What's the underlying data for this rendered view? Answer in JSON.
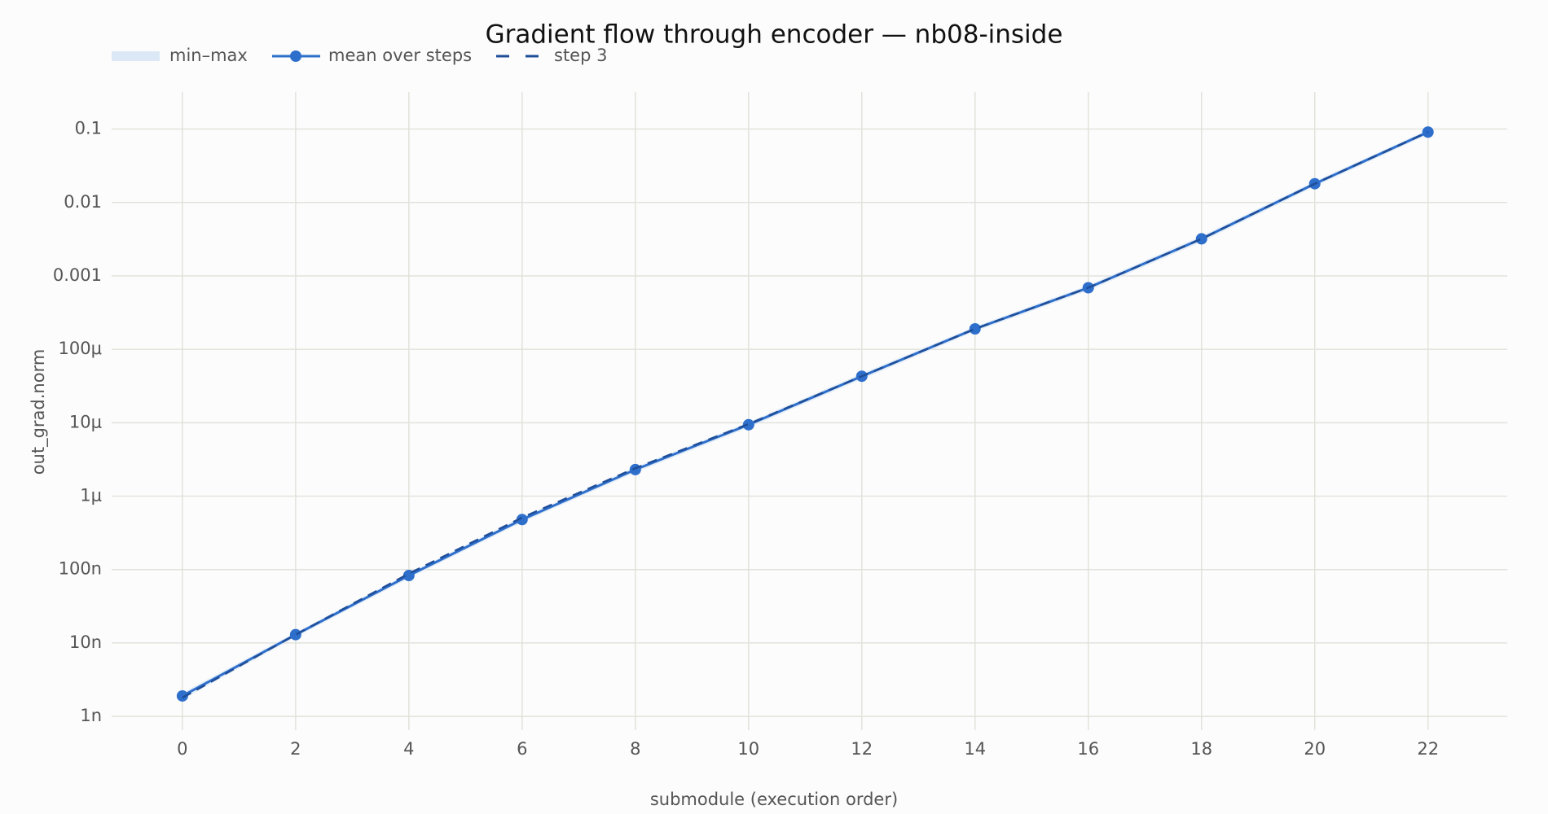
{
  "chart_data": {
    "type": "line",
    "title": "Gradient flow through encoder — nb08-inside",
    "x_label": "submodule (execution order)",
    "y_label": "out_grad.norm",
    "x": [
      0,
      2,
      4,
      6,
      8,
      10,
      12,
      14,
      16,
      18,
      20,
      22
    ],
    "series": [
      {
        "name": "min–max",
        "color": "#dce8f5",
        "style": "band",
        "low": [
          1.7e-09,
          1.2e-08,
          7.6e-08,
          4.4e-07,
          2.1e-06,
          8.6e-06,
          3.9e-05,
          0.000175,
          0.00063,
          0.0029,
          0.0165,
          0.084
        ],
        "high": [
          2.1e-09,
          1.4e-08,
          9e-08,
          5.2e-07,
          2.5e-06,
          1.02e-05,
          4.7e-05,
          0.000205,
          0.00075,
          0.0035,
          0.0195,
          0.098
        ]
      },
      {
        "name": "mean over steps",
        "color": "#2e6fcc",
        "style": "line-markers",
        "values": [
          1.9e-09,
          1.3e-08,
          8.3e-08,
          4.8e-07,
          2.3e-06,
          9.4e-06,
          4.3e-05,
          0.00019,
          0.00069,
          0.0032,
          0.018,
          0.091
        ]
      },
      {
        "name": "step 3",
        "color": "#1f4e99",
        "style": "dash",
        "values": [
          1.8e-09,
          1.3e-08,
          8.8e-08,
          5.1e-07,
          2.4e-06,
          9.6e-06,
          4.3e-05,
          0.00019,
          0.00069,
          0.0032,
          0.018,
          0.091
        ]
      }
    ],
    "xlim": [
      -1.25,
      23.4
    ],
    "xticks": [
      0,
      2,
      4,
      6,
      8,
      10,
      12,
      14,
      16,
      18,
      20,
      22
    ],
    "log_y": true,
    "ylim": [
      6.5e-10,
      0.32
    ],
    "yticks": [
      {
        "value": 1e-09,
        "label": "1n"
      },
      {
        "value": 1e-08,
        "label": "10n"
      },
      {
        "value": 1e-07,
        "label": "100n"
      },
      {
        "value": 1e-06,
        "label": "1μ"
      },
      {
        "value": 1e-05,
        "label": "10μ"
      },
      {
        "value": 0.0001,
        "label": "100μ"
      },
      0.001,
      0.01,
      0.1
    ],
    "grid": true,
    "legend": "top-left"
  }
}
